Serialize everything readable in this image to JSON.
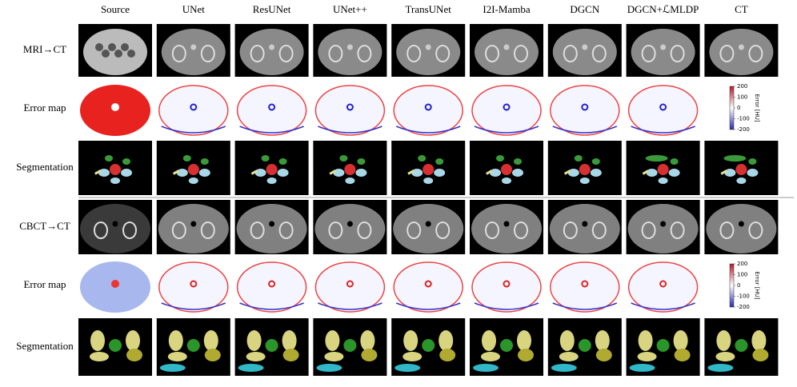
{
  "header": {
    "columns": [
      "Source",
      "UNet",
      "ResUNet",
      "UNet++",
      "TransUNet",
      "I2I-Mamba",
      "DGCN",
      "DGCN+ℒMLDP",
      "CT"
    ]
  },
  "rows": [
    {
      "label": "MRI→CT"
    },
    {
      "label": "Error map"
    },
    {
      "label": "Segmentation"
    },
    {
      "label": "CBCT→CT"
    },
    {
      "label": "Error map"
    },
    {
      "label": "Segmentation"
    }
  ],
  "colorbar": {
    "label": "Error [HU]",
    "ticks": [
      200,
      100,
      0,
      -100,
      -200
    ]
  }
}
